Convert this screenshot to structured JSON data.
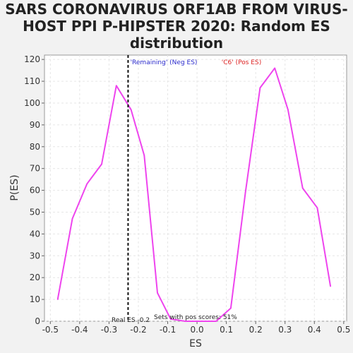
{
  "chart_data": {
    "type": "line",
    "title_lines": [
      "SARS CORONAVIRUS ORF1AB FROM VIRUS-",
      "HOST PPI P-HIPSTER 2020: Random ES",
      "distribution"
    ],
    "xlabel": "ES",
    "ylabel": "P(ES)",
    "xlim": [
      -0.52,
      0.51
    ],
    "ylim": [
      0,
      122
    ],
    "x_ticks": [
      -0.5,
      -0.4,
      -0.3,
      -0.2,
      -0.1,
      0.0,
      0.1,
      0.2,
      0.3,
      0.4,
      0.5
    ],
    "x_tick_labels": [
      "-0.5",
      "-0.4",
      "-0.3",
      "-0.2",
      "-0.1",
      "0.0",
      "0.1",
      "0.2",
      "0.3",
      "0.4",
      "0.5"
    ],
    "y_ticks": [
      0,
      10,
      20,
      30,
      40,
      50,
      60,
      70,
      80,
      90,
      100,
      110,
      120
    ],
    "y_tick_labels": [
      "0",
      "10",
      "20",
      "30",
      "40",
      "50",
      "60",
      "70",
      "80",
      "90",
      "100",
      "110",
      "120"
    ],
    "grid": true,
    "series_color": "#ee44ee",
    "series": [
      {
        "x": [
          -0.475,
          -0.425,
          -0.375,
          -0.325,
          -0.275,
          -0.225,
          -0.18,
          -0.135,
          -0.09,
          -0.04,
          0.01,
          0.065,
          0.115,
          0.165,
          0.215,
          0.265,
          0.31,
          0.36,
          0.41,
          0.455
        ],
        "values": [
          10,
          47,
          63,
          72,
          108,
          97,
          76,
          13,
          1,
          0,
          0,
          0,
          6,
          59,
          107,
          116,
          97,
          61,
          52,
          16
        ]
      }
    ],
    "real_es": -0.235,
    "real_es_color": "#111111",
    "neg_label": "'Remaining' (Neg ES)",
    "neg_color": "#2a2acc",
    "pos_label": "'C6' (Pos ES)",
    "pos_color": "#dd2222",
    "real_es_label": "Real ES -0.2",
    "pos_scores_label": "Sets with pos scores: 51%"
  }
}
